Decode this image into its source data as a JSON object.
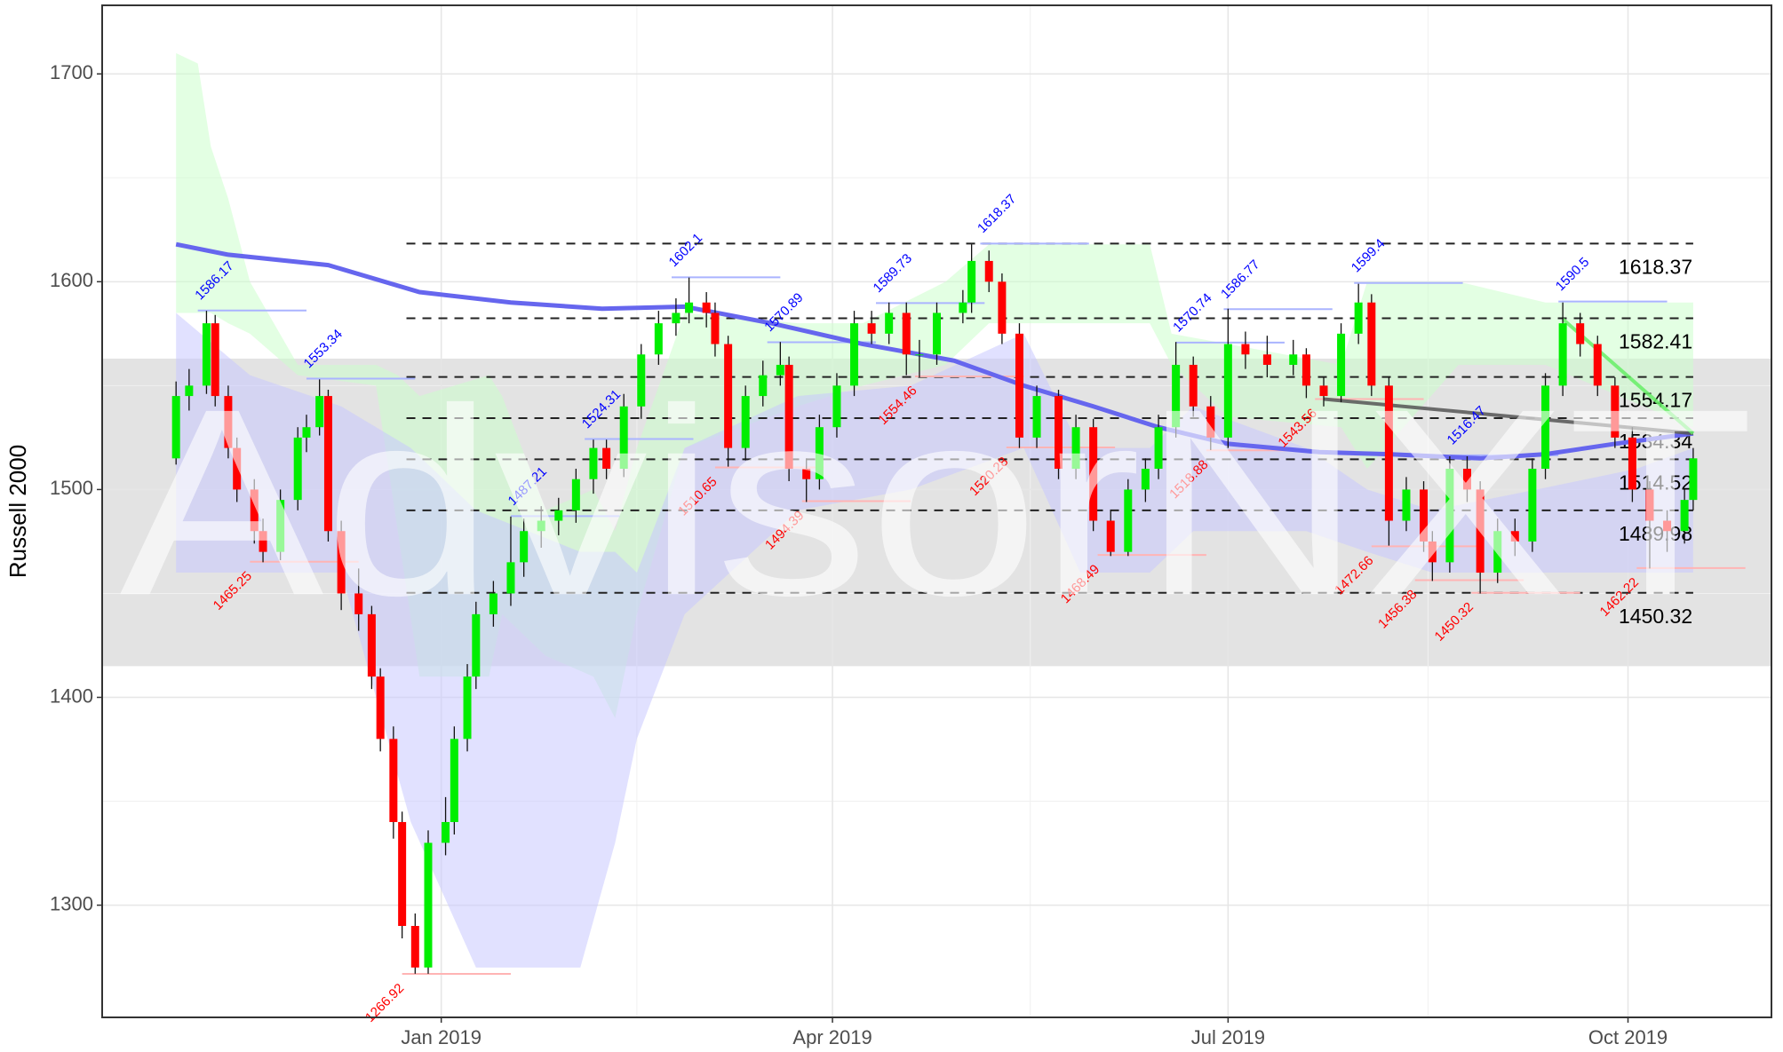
{
  "chart_data": {
    "type": "candlestick",
    "y_label": "Russell 2000",
    "watermark": "AdvisorNXT",
    "ylim": [
      1246,
      1733
    ],
    "yticks": [
      1300,
      1400,
      1500,
      1600,
      1700
    ],
    "xlim": [
      0,
      384
    ],
    "xticks": [
      {
        "value": 78,
        "label": "Jan 2019"
      },
      {
        "value": 168,
        "label": "Apr 2019"
      },
      {
        "value": 259,
        "label": "Jul 2019"
      },
      {
        "value": 351,
        "label": "Oct 2019"
      }
    ],
    "grid": true,
    "up_color": "#00ee00",
    "down_color": "#ff0000",
    "x": [
      17,
      20,
      24,
      26,
      29,
      31,
      35,
      37,
      41,
      45,
      47,
      50,
      52,
      55,
      59,
      62,
      64,
      67,
      69,
      72,
      75,
      79,
      81,
      84,
      86,
      90,
      94,
      97,
      101,
      105,
      109,
      113,
      116,
      120,
      124,
      128,
      132,
      135,
      139,
      141,
      144,
      148,
      152,
      156,
      158,
      162,
      165,
      169,
      173,
      177,
      181,
      185,
      188,
      192,
      198,
      200,
      204,
      207,
      211,
      215,
      220,
      224,
      228,
      232,
      236,
      240,
      243,
      247,
      251,
      255,
      259,
      263,
      268,
      274,
      277,
      281,
      285,
      289,
      292,
      296,
      300,
      304,
      306,
      310,
      314,
      317,
      321,
      325,
      329,
      332,
      336,
      340,
      344,
      348,
      352,
      356,
      360,
      364,
      366
    ],
    "open": [
      1515,
      1545,
      1550,
      1580,
      1545,
      1520,
      1500,
      1480,
      1470,
      1495,
      1525,
      1530,
      1545,
      1480,
      1450,
      1440,
      1410,
      1380,
      1340,
      1290,
      1270,
      1330,
      1340,
      1380,
      1410,
      1440,
      1450,
      1465,
      1480,
      1485,
      1490,
      1505,
      1520,
      1510,
      1540,
      1565,
      1580,
      1585,
      1590,
      1585,
      1570,
      1520,
      1545,
      1555,
      1560,
      1510,
      1505,
      1530,
      1550,
      1580,
      1575,
      1585,
      1565,
      1565,
      1585,
      1590,
      1610,
      1600,
      1575,
      1525,
      1545,
      1510,
      1530,
      1485,
      1470,
      1500,
      1510,
      1530,
      1560,
      1540,
      1525,
      1570,
      1565,
      1560,
      1565,
      1550,
      1545,
      1575,
      1590,
      1550,
      1485,
      1500,
      1475,
      1465,
      1510,
      1500,
      1460,
      1480,
      1475,
      1510,
      1550,
      1580,
      1570,
      1550,
      1525,
      1500,
      1485,
      1480,
      1495
    ],
    "high": [
      1552,
      1558,
      1586,
      1584,
      1550,
      1525,
      1505,
      1486,
      1500,
      1530,
      1536,
      1553,
      1548,
      1485,
      1462,
      1444,
      1414,
      1386,
      1345,
      1296,
      1336,
      1352,
      1386,
      1416,
      1446,
      1456,
      1487,
      1486,
      1492,
      1496,
      1510,
      1524,
      1524,
      1546,
      1570,
      1586,
      1592,
      1602,
      1595,
      1590,
      1574,
      1550,
      1562,
      1571,
      1564,
      1515,
      1536,
      1556,
      1586,
      1586,
      1590,
      1590,
      1572,
      1590,
      1596,
      1618,
      1615,
      1604,
      1580,
      1550,
      1548,
      1536,
      1534,
      1490,
      1505,
      1515,
      1536,
      1571,
      1564,
      1545,
      1587,
      1576,
      1574,
      1572,
      1568,
      1554,
      1580,
      1599,
      1594,
      1554,
      1506,
      1504,
      1480,
      1516,
      1516,
      1504,
      1486,
      1486,
      1515,
      1556,
      1590,
      1585,
      1574,
      1554,
      1530,
      1504,
      1490,
      1500,
      1520
    ],
    "low": [
      1512,
      1538,
      1546,
      1540,
      1515,
      1494,
      1474,
      1465,
      1466,
      1490,
      1518,
      1526,
      1475,
      1442,
      1432,
      1404,
      1374,
      1332,
      1284,
      1267,
      1267,
      1324,
      1334,
      1374,
      1404,
      1434,
      1444,
      1458,
      1472,
      1478,
      1484,
      1498,
      1505,
      1506,
      1534,
      1560,
      1574,
      1580,
      1578,
      1564,
      1511,
      1514,
      1540,
      1550,
      1504,
      1494,
      1500,
      1525,
      1545,
      1570,
      1570,
      1555,
      1554,
      1560,
      1580,
      1585,
      1595,
      1570,
      1520,
      1520,
      1505,
      1505,
      1480,
      1468,
      1468,
      1494,
      1505,
      1525,
      1535,
      1519,
      1520,
      1558,
      1554,
      1555,
      1544,
      1540,
      1542,
      1570,
      1545,
      1473,
      1480,
      1470,
      1456,
      1460,
      1494,
      1450,
      1455,
      1468,
      1470,
      1505,
      1545,
      1564,
      1545,
      1520,
      1494,
      1462,
      1470,
      1474,
      1490
    ],
    "close": [
      1545,
      1550,
      1580,
      1545,
      1520,
      1500,
      1480,
      1470,
      1495,
      1525,
      1530,
      1545,
      1480,
      1450,
      1440,
      1410,
      1380,
      1340,
      1290,
      1270,
      1330,
      1340,
      1380,
      1410,
      1440,
      1450,
      1465,
      1480,
      1485,
      1490,
      1505,
      1520,
      1510,
      1540,
      1565,
      1580,
      1585,
      1590,
      1585,
      1570,
      1520,
      1545,
      1555,
      1560,
      1510,
      1505,
      1530,
      1550,
      1580,
      1575,
      1585,
      1565,
      1565,
      1585,
      1590,
      1610,
      1600,
      1575,
      1525,
      1545,
      1510,
      1530,
      1485,
      1470,
      1500,
      1510,
      1530,
      1560,
      1540,
      1525,
      1570,
      1565,
      1560,
      1565,
      1550,
      1545,
      1575,
      1590,
      1550,
      1485,
      1500,
      1475,
      1465,
      1510,
      1500,
      1460,
      1480,
      1475,
      1510,
      1550,
      1580,
      1570,
      1550,
      1525,
      1500,
      1485,
      1480,
      1495,
      1515
    ],
    "moving_average": {
      "color": "#6666ee",
      "x": [
        17,
        29,
        52,
        73,
        94,
        115,
        134,
        154,
        175,
        196,
        212,
        228,
        243,
        259,
        280,
        296,
        317,
        332,
        348,
        366
      ],
      "values": [
        1618,
        1613,
        1608,
        1595,
        1590,
        1587,
        1588,
        1580,
        1570,
        1562,
        1550,
        1540,
        1530,
        1522,
        1518,
        1517,
        1515,
        1517,
        1522,
        1527
      ]
    },
    "clouds": [
      {
        "color": "#ccffcc",
        "x": [
          17,
          22,
          25,
          29,
          34,
          45,
          63,
          68,
          73,
          89,
          92,
          102,
          113,
          118,
          123,
          134,
          160,
          175,
          194,
          204,
          241,
          246,
          259,
          285,
          291,
          312,
          332,
          366
        ],
        "upper": [
          1710,
          1705,
          1665,
          1640,
          1600,
          1560,
          1560,
          1555,
          1545,
          1555,
          1545,
          1490,
          1500,
          1480,
          1520,
          1585,
          1580,
          1580,
          1600,
          1618,
          1618,
          1575,
          1570,
          1560,
          1600,
          1600,
          1590,
          1590
        ],
        "lower": [
          1585,
          1585,
          1585,
          1580,
          1575,
          1555,
          1550,
          1480,
          1410,
          1410,
          1440,
          1420,
          1410,
          1390,
          1440,
          1520,
          1540,
          1550,
          1560,
          1580,
          1580,
          1560,
          1535,
          1530,
          1510,
          1560,
          1560,
          1530
        ]
      },
      {
        "color": "#c8c8ff",
        "x": [
          17,
          34,
          55,
          71,
          86,
          110,
          118,
          123,
          134,
          160,
          186,
          212,
          225,
          241,
          251,
          277,
          291,
          306,
          330,
          353,
          366
        ],
        "upper": [
          1585,
          1555,
          1540,
          1520,
          1490,
          1470,
          1470,
          1460,
          1520,
          1545,
          1550,
          1575,
          1520,
          1520,
          1540,
          1520,
          1500,
          1490,
          1500,
          1510,
          1520
        ],
        "lower": [
          1460,
          1460,
          1460,
          1340,
          1270,
          1270,
          1330,
          1380,
          1440,
          1490,
          1500,
          1520,
          1460,
          1460,
          1480,
          1480,
          1470,
          1460,
          1460,
          1460,
          1460
        ]
      }
    ],
    "shaded_range": [
      1415,
      1563
    ],
    "levels": [
      1618.37,
      1582.41,
      1554.17,
      1534.34,
      1514.52,
      1489.98,
      1450.32
    ],
    "levels_x": [
      70,
      366
    ],
    "highs": {
      "color": "#0000ff",
      "x": [
        22,
        47,
        94,
        111,
        131,
        153,
        178,
        202,
        247,
        258,
        288,
        310,
        335
      ],
      "values": [
        1586.17,
        1553.34,
        1487.21,
        1524.31,
        1602.1,
        1570.89,
        1589.73,
        1618.37,
        1570.74,
        1586.77,
        1599.4,
        1516.47,
        1590.5
      ]
    },
    "lows": {
      "color": "#ff0000",
      "x": [
        34,
        69,
        141,
        161,
        187,
        208,
        254,
        229,
        279,
        292,
        302,
        315,
        353
      ],
      "values": [
        1465.25,
        1266.92,
        1510.65,
        1494.39,
        1554.46,
        1520.28,
        1518.88,
        1468.49,
        1543.56,
        1472.66,
        1456.38,
        1450.32,
        1462.22
      ]
    },
    "trendlines": [
      {
        "color": "#555555",
        "x": [
          281,
          366
        ],
        "values": [
          1543.56,
          1527
        ]
      },
      {
        "color": "#66ee66",
        "x": [
          336,
          366
        ],
        "values": [
          1582,
          1527
        ]
      }
    ]
  }
}
